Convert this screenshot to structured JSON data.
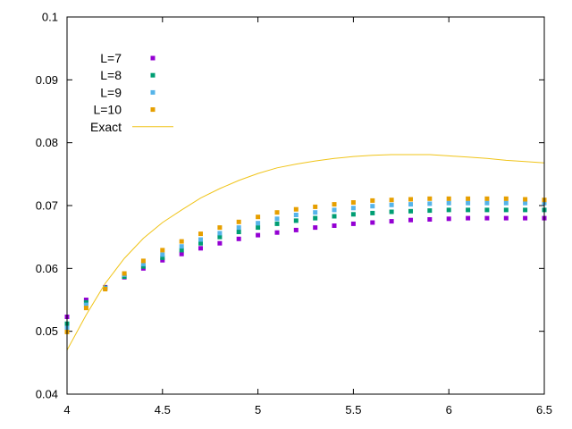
{
  "chart_data": {
    "type": "scatter",
    "title": "",
    "xlabel": "",
    "ylabel": "",
    "xlim": [
      4,
      6.5
    ],
    "ylim": [
      0.04,
      0.1
    ],
    "x_ticks": [
      "4",
      "4.5",
      "5",
      "5.5",
      "6",
      "6.5"
    ],
    "y_ticks": [
      "0.04",
      "0.05",
      "0.06",
      "0.07",
      "0.08",
      "0.09",
      "0.1"
    ],
    "grid": false,
    "legend_position": "top-left",
    "x": [
      4.0,
      4.1,
      4.2,
      4.3,
      4.4,
      4.5,
      4.6,
      4.7,
      4.8,
      4.9,
      5.0,
      5.1,
      5.2,
      5.3,
      5.4,
      5.5,
      5.6,
      5.7,
      5.8,
      5.9,
      6.0,
      6.1,
      6.2,
      6.3,
      6.4,
      6.5
    ],
    "series": [
      {
        "name": "L=7",
        "style": "points",
        "color": "#9400d3",
        "values": [
          0.0523,
          0.055,
          0.057,
          0.0586,
          0.06,
          0.0613,
          0.0623,
          0.0632,
          0.064,
          0.0647,
          0.0653,
          0.0657,
          0.0661,
          0.0665,
          0.0668,
          0.0671,
          0.0673,
          0.0675,
          0.0677,
          0.0678,
          0.0679,
          0.068,
          0.068,
          0.068,
          0.068,
          0.068
        ]
      },
      {
        "name": "L=8",
        "style": "points",
        "color": "#009e73",
        "values": [
          0.0512,
          0.0546,
          0.0569,
          0.0587,
          0.0603,
          0.0617,
          0.0629,
          0.064,
          0.065,
          0.0658,
          0.0665,
          0.0671,
          0.0676,
          0.068,
          0.0683,
          0.0686,
          0.0688,
          0.069,
          0.0691,
          0.0692,
          0.0693,
          0.0693,
          0.0693,
          0.0693,
          0.0693,
          0.0693
        ]
      },
      {
        "name": "L=9",
        "style": "points",
        "color": "#56b4e9",
        "values": [
          0.0505,
          0.0542,
          0.0568,
          0.059,
          0.0607,
          0.0622,
          0.0635,
          0.0646,
          0.0656,
          0.0665,
          0.0672,
          0.0679,
          0.0685,
          0.0689,
          0.0693,
          0.0696,
          0.0699,
          0.0701,
          0.0702,
          0.0703,
          0.0704,
          0.0704,
          0.0704,
          0.0704,
          0.0704,
          0.0704
        ]
      },
      {
        "name": "L=10",
        "style": "points",
        "color": "#e69f00",
        "values": [
          0.0499,
          0.0537,
          0.0567,
          0.0592,
          0.0612,
          0.0629,
          0.0643,
          0.0655,
          0.0665,
          0.0674,
          0.0682,
          0.0689,
          0.0694,
          0.0698,
          0.0702,
          0.0705,
          0.0708,
          0.0709,
          0.071,
          0.0711,
          0.0711,
          0.0711,
          0.0711,
          0.0711,
          0.071,
          0.0709
        ]
      },
      {
        "name": "Exact",
        "style": "line",
        "color": "#f0c419",
        "x": [
          4.0,
          4.1,
          4.2,
          4.3,
          4.4,
          4.5,
          4.6,
          4.7,
          4.8,
          4.9,
          5.0,
          5.1,
          5.2,
          5.3,
          5.4,
          5.5,
          5.6,
          5.7,
          5.8,
          5.9,
          6.0,
          6.1,
          6.2,
          6.3,
          6.4,
          6.5
        ],
        "values": [
          0.047,
          0.0526,
          0.0576,
          0.0616,
          0.0648,
          0.0673,
          0.0693,
          0.0712,
          0.0727,
          0.074,
          0.0751,
          0.076,
          0.0766,
          0.0771,
          0.0775,
          0.0778,
          0.078,
          0.0781,
          0.0781,
          0.0781,
          0.0779,
          0.0777,
          0.0775,
          0.0772,
          0.077,
          0.0768
        ]
      }
    ]
  }
}
